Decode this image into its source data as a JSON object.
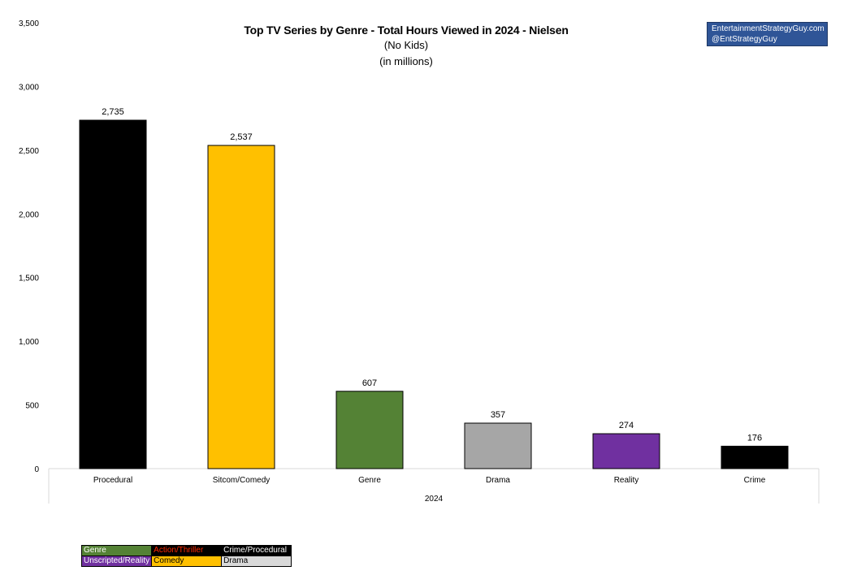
{
  "header": {
    "title": "Top TV Series by Genre - Total Hours Viewed in 2024 - Nielsen",
    "subtitle_1": "(No Kids)",
    "subtitle_2": "(in millions)"
  },
  "brand": {
    "line_1": "EntertainmentStrategyGuy.com",
    "line_2": "@EntStrategyGuy"
  },
  "chart_data": {
    "type": "bar",
    "title": "Top TV Series by Genre - Total Hours Viewed in 2024 - Nielsen",
    "categories": [
      "Procedural",
      "Sitcom/Comedy",
      "Genre",
      "Drama",
      "Reality",
      "Crime"
    ],
    "values": [
      2735,
      2537,
      607,
      357,
      274,
      176
    ],
    "data_labels": [
      "2,735",
      "2,537",
      "607",
      "357",
      "274",
      "176"
    ],
    "bar_colors": [
      "#000000",
      "#ffc000",
      "#548235",
      "#a6a6a6",
      "#7030a0",
      "#000000"
    ],
    "group_label": "2024",
    "ylim": [
      0,
      3500
    ],
    "yticks": [
      0,
      500,
      1000,
      1500,
      2000,
      2500,
      3000,
      3500
    ],
    "ytick_labels": [
      "0",
      "500",
      "1,000",
      "1,500",
      "2,000",
      "2,500",
      "3,000",
      "3,500"
    ],
    "grid": false,
    "xlabel": "",
    "ylabel": ""
  },
  "legend": {
    "placement": "bottom-left",
    "rows": [
      [
        {
          "label": "Genre",
          "bg": "#548235",
          "fg": "#ffffff"
        },
        {
          "label": "Action/Thriller",
          "bg": "#000000",
          "fg": "#ff2a00"
        },
        {
          "label": "Crime/Procedural",
          "bg": "#000000",
          "fg": "#ffffff"
        }
      ],
      [
        {
          "label": "Unscripted/Reality",
          "bg": "#7030a0",
          "fg": "#ffffff"
        },
        {
          "label": "Comedy",
          "bg": "#ffc000",
          "fg": "#000000"
        },
        {
          "label": "Drama",
          "bg": "#d9d9d9",
          "fg": "#000000"
        }
      ]
    ]
  }
}
